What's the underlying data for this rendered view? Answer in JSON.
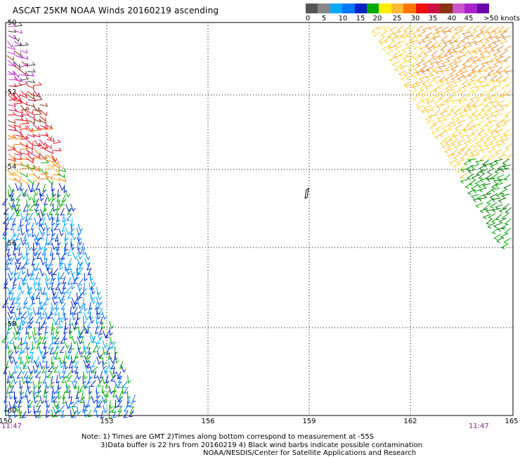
{
  "title": "ASCAT 25KM NOAA Winds 20160219 ascending",
  "colorbar": {
    "labels": [
      "0",
      "5",
      "10",
      "15",
      "20",
      "25",
      "30",
      "35",
      "40",
      "45",
      ">50 knots"
    ],
    "colors": [
      "#555555",
      "#888888",
      "#00aaff",
      "#0077ff",
      "#0022cc",
      "#00aa00",
      "#ffee00",
      "#ffbb33",
      "#ff7700",
      "#ee1111",
      "#cc1144",
      "#883311",
      "#cc55cc",
      "#aa22cc",
      "#6a00aa"
    ]
  },
  "axes": {
    "lon_labels": [
      "150",
      "153",
      "156",
      "159",
      "162",
      "165"
    ],
    "lat_labels": [
      "-50",
      "-52",
      "-54",
      "-56",
      "-58",
      "-60"
    ]
  },
  "pass_times": {
    "left": "11:47",
    "right": "11:47"
  },
  "notes": {
    "line1": "Note: 1) Times are GMT 2)Times along bottom correspond to measurement at -55S",
    "line2": "3)Data buffer is 22 hrs from 20160219 4) Black wind barbs indicate possible contamination",
    "line3": "NOAA/NESDIS/Center for Satellite Applications and Research"
  }
}
